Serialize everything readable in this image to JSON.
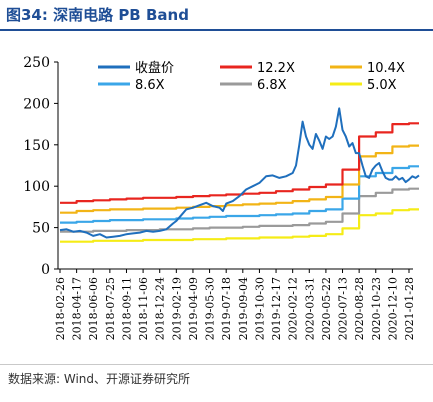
{
  "figure": {
    "title": "图34:  深南电路  PB Band",
    "source": "数据来源: Wind、开源证券研究所"
  },
  "chart_data": {
    "type": "line",
    "title": "",
    "xlabel": "",
    "ylabel": "",
    "ylim": [
      0,
      250
    ],
    "yticks": [
      0,
      50,
      100,
      150,
      200,
      250
    ],
    "xticks": [
      "2018-02-26",
      "2018-04-17",
      "2018-06-06",
      "2018-07-25",
      "2018-09-11",
      "2018-11-06",
      "2018-12-24",
      "2019-02-19",
      "2019-04-09",
      "2019-05-30",
      "2019-07-18",
      "2019-09-04",
      "2019-10-30",
      "2019-12-17",
      "2020-02-12",
      "2020-03-31",
      "2020-05-22",
      "2020-07-13",
      "2020-08-28",
      "2020-10-23",
      "2020-12-10",
      "2021-01-28"
    ],
    "grid": false,
    "legend_position": "top",
    "series": [
      {
        "name": "收盘价",
        "color": "#1f6fbd",
        "step": false,
        "points": [
          [
            0,
            47
          ],
          [
            0.4,
            48
          ],
          [
            0.8,
            45
          ],
          [
            1.2,
            46
          ],
          [
            1.6,
            44
          ],
          [
            2,
            40
          ],
          [
            2.4,
            42
          ],
          [
            2.8,
            38
          ],
          [
            3.2,
            39
          ],
          [
            3.6,
            40
          ],
          [
            4,
            42
          ],
          [
            4.4,
            43
          ],
          [
            4.8,
            44
          ],
          [
            5.2,
            46
          ],
          [
            5.6,
            45
          ],
          [
            6,
            46
          ],
          [
            6.4,
            48
          ],
          [
            6.8,
            55
          ],
          [
            7,
            58
          ],
          [
            7.3,
            65
          ],
          [
            7.6,
            72
          ],
          [
            8,
            74
          ],
          [
            8.4,
            77
          ],
          [
            8.8,
            80
          ],
          [
            9.2,
            76
          ],
          [
            9.6,
            74
          ],
          [
            9.8,
            70
          ],
          [
            10,
            79
          ],
          [
            10.4,
            82
          ],
          [
            10.8,
            88
          ],
          [
            11.2,
            96
          ],
          [
            11.6,
            100
          ],
          [
            12,
            104
          ],
          [
            12.4,
            112
          ],
          [
            12.8,
            113
          ],
          [
            13.2,
            110
          ],
          [
            13.6,
            112
          ],
          [
            14,
            116
          ],
          [
            14.2,
            125
          ],
          [
            14.4,
            150
          ],
          [
            14.6,
            178
          ],
          [
            14.8,
            160
          ],
          [
            15,
            150
          ],
          [
            15.2,
            145
          ],
          [
            15.4,
            163
          ],
          [
            15.6,
            155
          ],
          [
            15.8,
            145
          ],
          [
            16,
            160
          ],
          [
            16.2,
            157
          ],
          [
            16.4,
            160
          ],
          [
            16.6,
            172
          ],
          [
            16.8,
            194
          ],
          [
            17,
            168
          ],
          [
            17.2,
            160
          ],
          [
            17.4,
            148
          ],
          [
            17.6,
            152
          ],
          [
            17.8,
            140
          ],
          [
            18,
            140
          ],
          [
            18.2,
            125
          ],
          [
            18.4,
            112
          ],
          [
            18.6,
            110
          ],
          [
            18.8,
            120
          ],
          [
            19,
            125
          ],
          [
            19.2,
            128
          ],
          [
            19.4,
            118
          ],
          [
            19.6,
            110
          ],
          [
            19.8,
            108
          ],
          [
            20,
            108
          ],
          [
            20.2,
            112
          ],
          [
            20.4,
            108
          ],
          [
            20.6,
            110
          ],
          [
            20.8,
            105
          ],
          [
            21,
            108
          ],
          [
            21.2,
            112
          ],
          [
            21.4,
            110
          ],
          [
            21.6,
            113
          ]
        ]
      },
      {
        "name": "12.2X",
        "color": "#e8251f",
        "step": true,
        "points": [
          [
            0,
            80
          ],
          [
            1,
            82
          ],
          [
            2,
            83
          ],
          [
            3,
            84
          ],
          [
            4,
            85
          ],
          [
            5,
            86
          ],
          [
            6,
            86
          ],
          [
            7,
            87
          ],
          [
            8,
            88
          ],
          [
            9,
            89
          ],
          [
            10,
            90
          ],
          [
            11,
            91
          ],
          [
            12,
            92
          ],
          [
            13,
            94
          ],
          [
            14,
            96
          ],
          [
            15,
            99
          ],
          [
            16,
            102
          ],
          [
            17,
            120
          ],
          [
            18,
            160
          ],
          [
            19,
            165
          ],
          [
            20,
            175
          ],
          [
            21,
            176
          ],
          [
            21.6,
            176
          ]
        ]
      },
      {
        "name": "10.4X",
        "color": "#f2b416",
        "step": true,
        "points": [
          [
            0,
            68
          ],
          [
            1,
            70
          ],
          [
            2,
            71
          ],
          [
            3,
            72
          ],
          [
            4,
            72
          ],
          [
            5,
            73
          ],
          [
            6,
            73
          ],
          [
            7,
            74
          ],
          [
            8,
            75
          ],
          [
            9,
            76
          ],
          [
            10,
            77
          ],
          [
            11,
            78
          ],
          [
            12,
            79
          ],
          [
            13,
            80
          ],
          [
            14,
            82
          ],
          [
            15,
            84
          ],
          [
            16,
            87
          ],
          [
            17,
            102
          ],
          [
            18,
            136
          ],
          [
            19,
            140
          ],
          [
            20,
            148
          ],
          [
            21,
            149
          ],
          [
            21.6,
            149
          ]
        ]
      },
      {
        "name": "8.6X",
        "color": "#3aa6e8",
        "step": true,
        "points": [
          [
            0,
            56
          ],
          [
            1,
            57
          ],
          [
            2,
            58
          ],
          [
            3,
            59
          ],
          [
            4,
            59
          ],
          [
            5,
            60
          ],
          [
            6,
            60
          ],
          [
            7,
            61
          ],
          [
            8,
            62
          ],
          [
            9,
            63
          ],
          [
            10,
            64
          ],
          [
            11,
            64
          ],
          [
            12,
            65
          ],
          [
            13,
            66
          ],
          [
            14,
            67
          ],
          [
            15,
            70
          ],
          [
            16,
            72
          ],
          [
            17,
            85
          ],
          [
            18,
            112
          ],
          [
            19,
            116
          ],
          [
            20,
            122
          ],
          [
            21,
            124
          ],
          [
            21.6,
            124
          ]
        ]
      },
      {
        "name": "6.8X",
        "color": "#9a9a9a",
        "step": true,
        "points": [
          [
            0,
            45
          ],
          [
            1,
            45
          ],
          [
            2,
            46
          ],
          [
            3,
            46
          ],
          [
            4,
            47
          ],
          [
            5,
            47
          ],
          [
            6,
            48
          ],
          [
            7,
            48
          ],
          [
            8,
            49
          ],
          [
            9,
            50
          ],
          [
            10,
            50
          ],
          [
            11,
            51
          ],
          [
            12,
            52
          ],
          [
            13,
            52
          ],
          [
            14,
            53
          ],
          [
            15,
            55
          ],
          [
            16,
            57
          ],
          [
            17,
            67
          ],
          [
            18,
            88
          ],
          [
            19,
            92
          ],
          [
            20,
            96
          ],
          [
            21,
            97
          ],
          [
            21.6,
            97
          ]
        ]
      },
      {
        "name": "5.0X",
        "color": "#f5ec16",
        "step": true,
        "points": [
          [
            0,
            33
          ],
          [
            1,
            33
          ],
          [
            2,
            34
          ],
          [
            3,
            34
          ],
          [
            4,
            34
          ],
          [
            5,
            35
          ],
          [
            6,
            35
          ],
          [
            7,
            35
          ],
          [
            8,
            36
          ],
          [
            9,
            36
          ],
          [
            10,
            37
          ],
          [
            11,
            37
          ],
          [
            12,
            38
          ],
          [
            13,
            38
          ],
          [
            14,
            39
          ],
          [
            15,
            40
          ],
          [
            16,
            42
          ],
          [
            17,
            49
          ],
          [
            18,
            65
          ],
          [
            19,
            67
          ],
          [
            20,
            71
          ],
          [
            21,
            72
          ],
          [
            21.6,
            72
          ]
        ]
      }
    ]
  }
}
